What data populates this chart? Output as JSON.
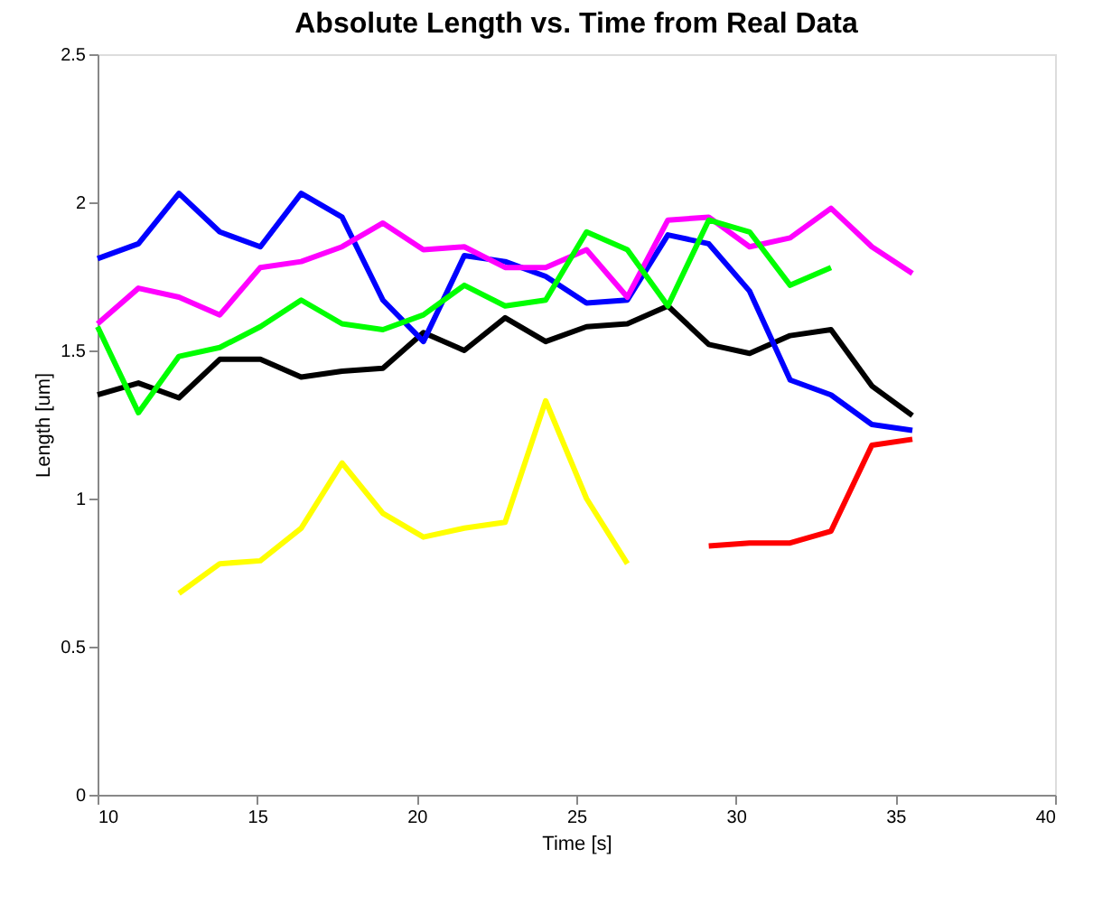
{
  "chart_data": {
    "type": "line",
    "title": "Absolute Length vs. Time from Real Data",
    "xlabel": "Time [s]",
    "ylabel": "Length [um]",
    "x": [
      10,
      11.28,
      12.55,
      13.83,
      15.1,
      16.38,
      17.66,
      18.94,
      20.21,
      21.49,
      22.77,
      24.04,
      25.32,
      26.6,
      27.87,
      29.15,
      30.43,
      31.7,
      32.98,
      34.26,
      35.53
    ],
    "xlim": [
      10,
      40
    ],
    "xticks": [
      10,
      15,
      20,
      25,
      30,
      35,
      40
    ],
    "ylim": [
      0,
      2.5
    ],
    "yticks": [
      0,
      0.5,
      1,
      1.5,
      2,
      2.5
    ],
    "grid": false,
    "marker": "none",
    "line_style": "solid",
    "series": [
      {
        "color": "#000000",
        "values": [
          1.35,
          1.39,
          1.34,
          1.47,
          1.47,
          1.41,
          1.43,
          1.44,
          1.56,
          1.5,
          1.61,
          1.53,
          1.58,
          1.59,
          1.65,
          1.52,
          1.49,
          1.55,
          1.57,
          1.38,
          1.28
        ]
      },
      {
        "color": "#0000ff",
        "values": [
          1.81,
          1.86,
          2.03,
          1.9,
          1.85,
          2.03,
          1.95,
          1.67,
          1.53,
          1.82,
          1.8,
          1.75,
          1.66,
          1.67,
          1.89,
          1.86,
          1.7,
          1.4,
          1.35,
          1.25,
          1.23
        ]
      },
      {
        "color": "#ff00ff",
        "values": [
          1.59,
          1.71,
          1.68,
          1.62,
          1.78,
          1.8,
          1.85,
          1.93,
          1.84,
          1.85,
          1.78,
          1.78,
          1.84,
          1.68,
          1.94,
          1.95,
          1.85,
          1.88,
          1.98,
          1.85,
          1.76
        ]
      },
      {
        "color": "#00ff00",
        "values": [
          1.58,
          1.29,
          1.48,
          1.51,
          1.58,
          1.67,
          1.59,
          1.57,
          1.62,
          1.72,
          1.65,
          1.67,
          1.9,
          1.84,
          1.65,
          1.94,
          1.9,
          1.72,
          1.78,
          null,
          null
        ]
      },
      {
        "color": "#ffff00",
        "values": [
          null,
          null,
          0.68,
          0.78,
          0.79,
          0.9,
          1.12,
          0.95,
          0.87,
          0.9,
          0.92,
          1.33,
          1.0,
          0.78,
          null,
          null,
          null,
          null,
          null,
          null,
          null
        ]
      },
      {
        "color": "#ff0000",
        "values": [
          null,
          null,
          null,
          null,
          null,
          null,
          null,
          null,
          null,
          null,
          null,
          null,
          null,
          null,
          null,
          0.84,
          0.85,
          0.85,
          0.89,
          1.18,
          1.2
        ]
      }
    ]
  }
}
